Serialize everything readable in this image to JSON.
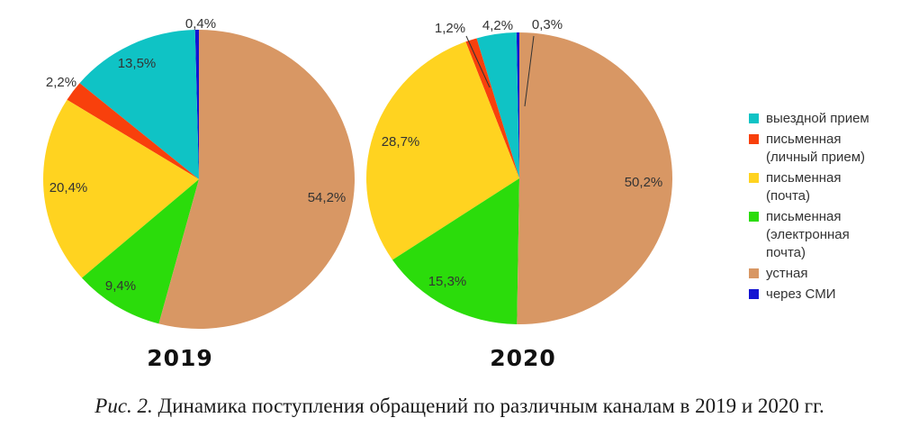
{
  "figure": {
    "caption": {
      "prefix": "Рис. 2.",
      "text": "Динамика поступления обращений по различным каналам в 2019 и 2020 гг."
    }
  },
  "legend": {
    "position": "right",
    "items": [
      {
        "label": "выездной прием",
        "color": "#0FC3C5"
      },
      {
        "label": "письменная (личный прием)",
        "color": "#F8400C"
      },
      {
        "label": "письменная (почта)",
        "color": "#FFD320"
      },
      {
        "label": "письменная (электронная почта)",
        "color": "#2BDC0B"
      },
      {
        "label": "устная",
        "color": "#D89764"
      },
      {
        "label": "через СМИ",
        "color": "#1414D2"
      }
    ]
  },
  "chart_data": [
    {
      "type": "pie",
      "title": "2019",
      "categories": [
        "выездной прием",
        "письменная (личный прием)",
        "письменная (почта)",
        "письменная (электронная почта)",
        "устная",
        "через СМИ"
      ],
      "values": [
        13.5,
        2.2,
        20.4,
        9.4,
        54.2,
        0.4
      ],
      "labels": [
        "13,5%",
        "2,2%",
        "20,4%",
        "9,4%",
        "54,2%",
        "0,4%"
      ],
      "colors": [
        "#0FC3C5",
        "#F8400C",
        "#FFD320",
        "#2BDC0B",
        "#D89764",
        "#1414D2"
      ],
      "layout": {
        "start_angle": "top",
        "direction": "counterclockwise",
        "draw_order_ccw": [
          5,
          0,
          1,
          2,
          3,
          4
        ],
        "legend": "shared-right"
      }
    },
    {
      "type": "pie",
      "title": "2020",
      "categories": [
        "выездной прием",
        "письменная (личный прием)",
        "письменная (почта)",
        "письменная (электронная почта)",
        "устная",
        "через СМИ"
      ],
      "values": [
        4.2,
        1.2,
        28.7,
        15.3,
        50.2,
        0.3
      ],
      "labels": [
        "4,2%",
        "1,2%",
        "28,7%",
        "15,3%",
        "50,2%",
        "0,3%"
      ],
      "colors": [
        "#0FC3C5",
        "#F8400C",
        "#FFD320",
        "#2BDC0B",
        "#D89764",
        "#1414D2"
      ],
      "layout": {
        "start_angle": "top",
        "direction": "counterclockwise",
        "draw_order_ccw": [
          5,
          0,
          1,
          2,
          3,
          4
        ],
        "legend": "shared-right"
      }
    }
  ]
}
